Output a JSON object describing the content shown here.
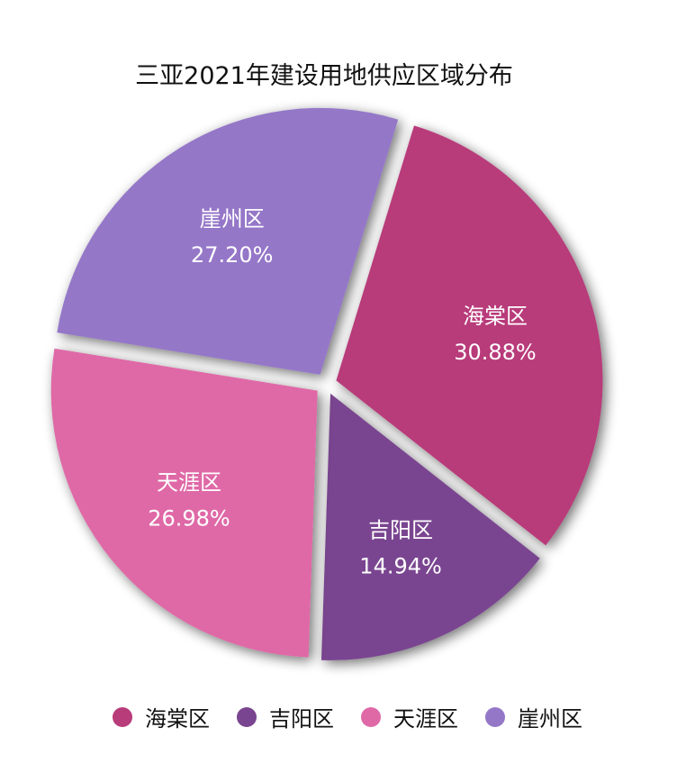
{
  "chart_data": {
    "type": "pie",
    "title": "三亚2021年建设用地供应区域分布",
    "categories": [
      "海棠区",
      "吉阳区",
      "天涯区",
      "崖州区"
    ],
    "values": [
      30.88,
      14.94,
      26.98,
      27.2
    ],
    "value_labels": [
      "30.88%",
      "14.94%",
      "26.98%",
      "27.20%"
    ],
    "colors": [
      "#b83b7a",
      "#7a4590",
      "#df69a7",
      "#9577c8"
    ],
    "exploded": true,
    "legend": "bottom"
  }
}
